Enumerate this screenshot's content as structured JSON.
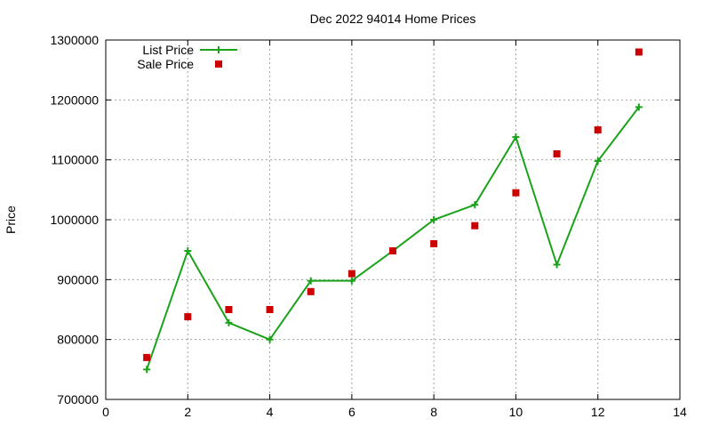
{
  "chart_data": {
    "type": "line",
    "title": "Dec 2022 94014 Home Prices",
    "xlabel": "",
    "ylabel": "Price",
    "xlim": [
      0,
      14
    ],
    "ylim": [
      700000,
      1300000
    ],
    "x_ticks": [
      0,
      2,
      4,
      6,
      8,
      10,
      12,
      14
    ],
    "y_ticks": [
      700000,
      800000,
      900000,
      1000000,
      1100000,
      1200000,
      1300000
    ],
    "grid": true,
    "legend_position": "top-left",
    "series": [
      {
        "name": "List Price",
        "style": "line-with-plus-markers",
        "color": "#1aa31a",
        "x": [
          1,
          2,
          3,
          4,
          5,
          6,
          7,
          8,
          9,
          10,
          11,
          12,
          13
        ],
        "y": [
          750000,
          948000,
          828000,
          800000,
          898000,
          898000,
          948000,
          1000000,
          1025000,
          1138000,
          925000,
          1098000,
          1188000
        ]
      },
      {
        "name": "Sale Price",
        "style": "square-markers",
        "color": "#cc0000",
        "x": [
          1,
          2,
          3,
          4,
          5,
          6,
          7,
          8,
          9,
          10,
          11,
          12,
          13
        ],
        "y": [
          770000,
          838000,
          850000,
          850000,
          880000,
          910000,
          948000,
          960000,
          990000,
          1045000,
          1110000,
          1150000,
          1280000
        ]
      }
    ]
  }
}
